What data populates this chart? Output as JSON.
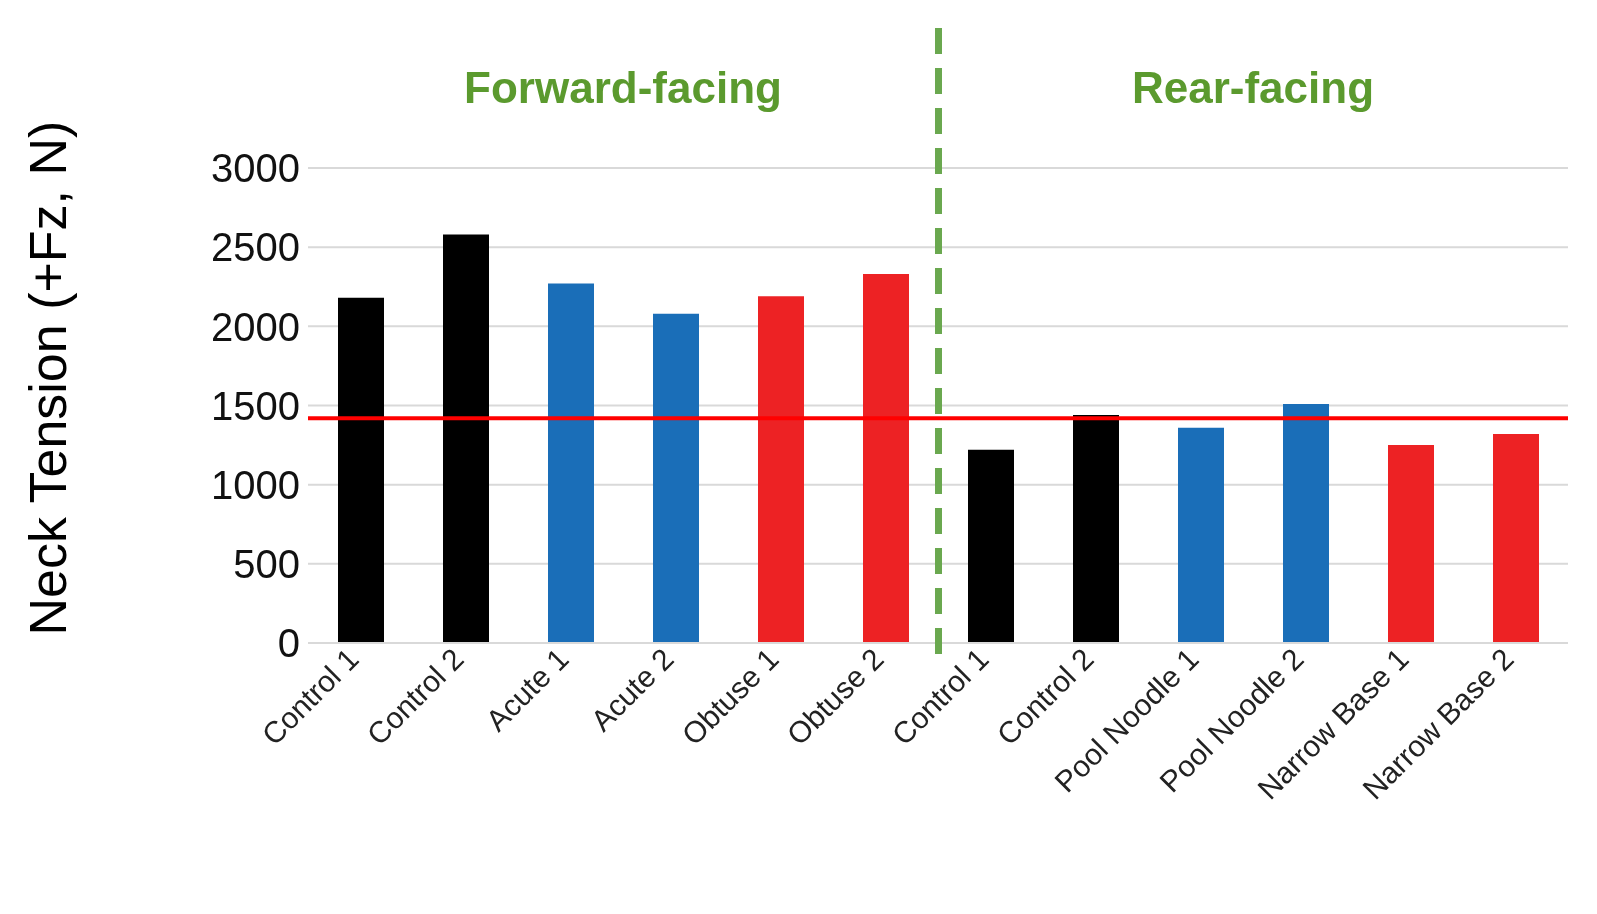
{
  "chart_data": {
    "type": "bar",
    "ylabel": "Neck Tension (+Fz, N)",
    "categories": [
      "Control 1",
      "Control 2",
      "Acute 1",
      "Acute 2",
      "Obtuse 1",
      "Obtuse 2",
      "Control 1",
      "Control 2",
      "Pool Noodle 1",
      "Pool Noodle 2",
      "Narrow Base 1",
      "Narrow Base 2"
    ],
    "values": [
      2180,
      2580,
      2270,
      2080,
      2190,
      2330,
      1220,
      1440,
      1360,
      1510,
      1250,
      1320
    ],
    "colors": [
      "#000000",
      "#000000",
      "#1a6eb8",
      "#1a6eb8",
      "#ed2224",
      "#ed2224",
      "#000000",
      "#000000",
      "#1a6eb8",
      "#1a6eb8",
      "#ed2224",
      "#ed2224"
    ],
    "ylim": [
      0,
      3000
    ],
    "yticks": [
      0,
      500,
      1000,
      1500,
      2000,
      2500,
      3000
    ],
    "grid": "y",
    "ref_lines": [
      {
        "axis": "y",
        "value": 1420,
        "color": "#ff0000"
      }
    ],
    "annotations": [
      "Forward-facing",
      "Rear-facing"
    ]
  }
}
